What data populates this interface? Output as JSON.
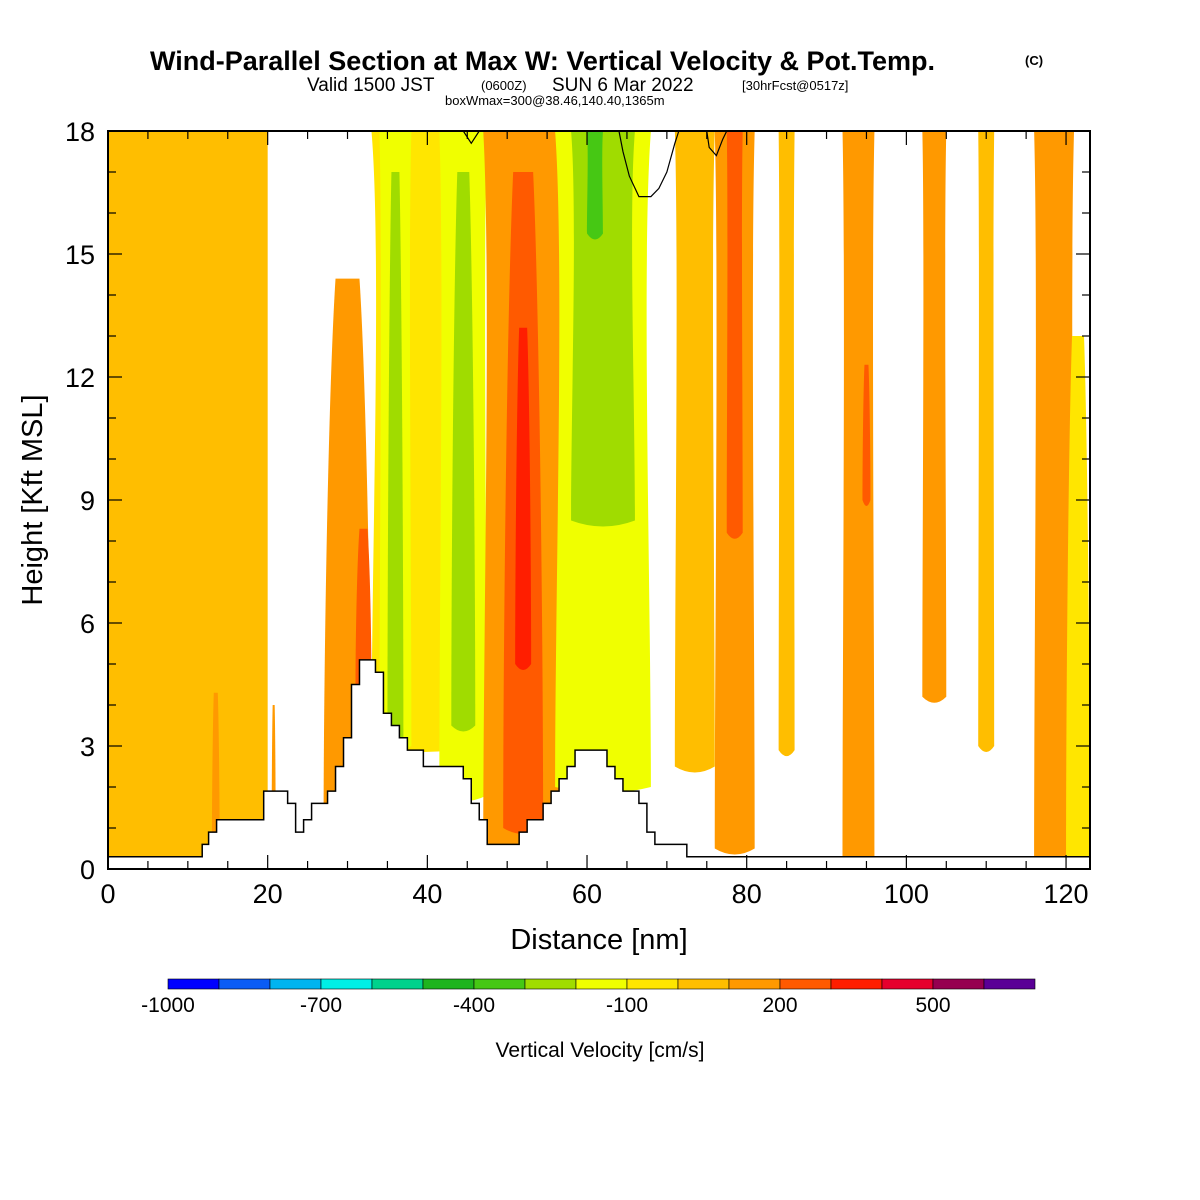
{
  "header": {
    "title": "Wind-Parallel Section at Max W: Vertical Velocity & Pot.Temp.",
    "copyright": "(C)",
    "valid_prefix": "Valid 1500 JST",
    "valid_utc": "(0600Z)",
    "valid_date": "SUN 6 Mar 2022",
    "forecast": "[30hrFcst@0517z]",
    "box_info": "boxWmax=300@38.46,140.40,1365m"
  },
  "chart_data": {
    "type": "heatmap",
    "title": "Wind-Parallel Section at Max W: Vertical Velocity & Pot.Temp.",
    "xlabel": "Distance [nm]",
    "ylabel": "Height [Kft MSL]",
    "xlim": [
      0,
      123
    ],
    "ylim": [
      0,
      18
    ],
    "x_ticks": [
      0,
      20,
      40,
      60,
      80,
      100,
      120
    ],
    "y_ticks": [
      0,
      3,
      6,
      9,
      12,
      15,
      18
    ],
    "colorbar": {
      "label": "Vertical Velocity [cm/s]",
      "levels": [
        -1000,
        -900,
        -800,
        -700,
        -600,
        -500,
        -400,
        -300,
        -200,
        -100,
        0,
        100,
        200,
        300,
        400,
        500,
        600,
        700
      ],
      "tick_labels": [
        {
          "value": -1000,
          "text": "-1000"
        },
        {
          "value": -700,
          "text": "-700"
        },
        {
          "value": -400,
          "text": "-400"
        },
        {
          "value": -100,
          "text": "-100"
        },
        {
          "value": 200,
          "text": "200"
        },
        {
          "value": 500,
          "text": "500"
        }
      ],
      "colors": [
        "#0000ff",
        "#0a5cf5",
        "#00b4f0",
        "#00f0e6",
        "#00d28c",
        "#1eb41e",
        "#46c814",
        "#a0dc00",
        "#f0ff00",
        "#ffe600",
        "#ffbe00",
        "#ff9900",
        "#ff5a00",
        "#ff1e00",
        "#e6002d",
        "#960050",
        "#5a0096"
      ]
    },
    "bins": {
      "-300_-200": "#a0dc00",
      "-200_-100": "#f0ff00",
      "-100_0": "#ffe600",
      "0_100": "#ffbe00",
      "100_200": "#ff9900",
      "200_300": "#ff5a00",
      "300_400": "#ff1e00",
      "-400_-300": "#46c814"
    },
    "velocity_columns": [
      {
        "x": [
          0,
          20
        ],
        "bin": "0_100",
        "z": [
          0,
          18
        ]
      },
      {
        "x": [
          13,
          14
        ],
        "bin": "100_200",
        "z": [
          0,
          4.3
        ]
      },
      {
        "x": [
          20.5,
          21
        ],
        "bin": "100_200",
        "z": [
          1,
          4
        ]
      },
      {
        "x": [
          27,
          33
        ],
        "bin": "100_200",
        "z": [
          0.9,
          14.4
        ]
      },
      {
        "x": [
          31,
          33
        ],
        "bin": "200_300",
        "z": [
          4.5,
          8.3
        ]
      },
      {
        "x": [
          33,
          46
        ],
        "bin": "-100_0",
        "z": [
          3,
          18
        ]
      },
      {
        "x": [
          34,
          38
        ],
        "bin": "-200_-100",
        "z": [
          3,
          18
        ]
      },
      {
        "x": [
          35,
          37
        ],
        "bin": "-300_-200",
        "z": [
          3,
          17
        ]
      },
      {
        "x": [
          41.5,
          47.5
        ],
        "bin": "-200_-100",
        "z": [
          1.8,
          18
        ]
      },
      {
        "x": [
          43,
          46
        ],
        "bin": "-300_-200",
        "z": [
          3.5,
          17
        ]
      },
      {
        "x": [
          47,
          57
        ],
        "bin": "100_200",
        "z": [
          0.6,
          18
        ]
      },
      {
        "x": [
          49.5,
          54.5
        ],
        "bin": "200_300",
        "z": [
          1,
          17
        ]
      },
      {
        "x": [
          51,
          53
        ],
        "bin": "300_400",
        "z": [
          5,
          13.2
        ]
      },
      {
        "x": [
          56,
          68
        ],
        "bin": "-200_-100",
        "z": [
          2,
          18
        ]
      },
      {
        "x": [
          58,
          66
        ],
        "bin": "-300_-200",
        "z": [
          8.5,
          18
        ]
      },
      {
        "x": [
          60,
          62
        ],
        "bin": "-400_-300",
        "z": [
          15.5,
          18
        ]
      },
      {
        "x": [
          71,
          76
        ],
        "bin": "0_100",
        "z": [
          2.5,
          18
        ]
      },
      {
        "x": [
          76,
          81
        ],
        "bin": "100_200",
        "z": [
          0.5,
          18
        ]
      },
      {
        "x": [
          77.5,
          79.5
        ],
        "bin": "200_300",
        "z": [
          8.2,
          18
        ]
      },
      {
        "x": [
          84,
          86
        ],
        "bin": "0_100",
        "z": [
          2.9,
          18
        ]
      },
      {
        "x": [
          92,
          96
        ],
        "bin": "100_200",
        "z": [
          0.3,
          18
        ]
      },
      {
        "x": [
          94.5,
          95.5
        ],
        "bin": "200_300",
        "z": [
          9,
          12.3
        ]
      },
      {
        "x": [
          102,
          105
        ],
        "bin": "100_200",
        "z": [
          4.2,
          18
        ]
      },
      {
        "x": [
          109,
          111
        ],
        "bin": "0_100",
        "z": [
          3,
          18
        ]
      },
      {
        "x": [
          116,
          121
        ],
        "bin": "100_200",
        "z": [
          0.3,
          18
        ]
      },
      {
        "x": [
          120,
          123
        ],
        "bin": "-100_0",
        "z": [
          0.3,
          13
        ]
      }
    ],
    "terrain": [
      [
        0,
        0.3
      ],
      [
        11.8,
        0.3
      ],
      [
        11.8,
        0.6
      ],
      [
        12.6,
        0.6
      ],
      [
        12.6,
        0.9
      ],
      [
        13.6,
        0.9
      ],
      [
        13.6,
        1.2
      ],
      [
        19.5,
        1.2
      ],
      [
        19.5,
        1.9
      ],
      [
        22.5,
        1.9
      ],
      [
        22.5,
        1.6
      ],
      [
        23.5,
        1.6
      ],
      [
        23.5,
        0.9
      ],
      [
        24.5,
        0.9
      ],
      [
        24.5,
        1.2
      ],
      [
        25.5,
        1.2
      ],
      [
        25.5,
        1.6
      ],
      [
        27.5,
        1.6
      ],
      [
        27.5,
        1.9
      ],
      [
        28.5,
        1.9
      ],
      [
        28.5,
        2.5
      ],
      [
        29.5,
        2.5
      ],
      [
        29.5,
        3.2
      ],
      [
        30.5,
        3.2
      ],
      [
        30.5,
        4.5
      ],
      [
        31.5,
        4.5
      ],
      [
        31.5,
        5.1
      ],
      [
        33.5,
        5.1
      ],
      [
        33.5,
        4.8
      ],
      [
        34.5,
        4.8
      ],
      [
        34.5,
        3.8
      ],
      [
        35.5,
        3.8
      ],
      [
        35.5,
        3.5
      ],
      [
        36.5,
        3.5
      ],
      [
        36.5,
        3.2
      ],
      [
        37.5,
        3.2
      ],
      [
        37.5,
        2.9
      ],
      [
        39.5,
        2.9
      ],
      [
        39.5,
        2.5
      ],
      [
        44.5,
        2.5
      ],
      [
        44.5,
        2.2
      ],
      [
        45.5,
        2.2
      ],
      [
        45.5,
        1.6
      ],
      [
        46.5,
        1.6
      ],
      [
        46.5,
        1.2
      ],
      [
        47.5,
        1.2
      ],
      [
        47.5,
        0.6
      ],
      [
        51.5,
        0.6
      ],
      [
        51.5,
        0.9
      ],
      [
        52.5,
        0.9
      ],
      [
        52.5,
        1.2
      ],
      [
        54.5,
        1.2
      ],
      [
        54.5,
        1.6
      ],
      [
        55.5,
        1.6
      ],
      [
        55.5,
        1.9
      ],
      [
        56.5,
        1.9
      ],
      [
        56.5,
        2.2
      ],
      [
        57.5,
        2.2
      ],
      [
        57.5,
        2.5
      ],
      [
        58.5,
        2.5
      ],
      [
        58.5,
        2.9
      ],
      [
        62.5,
        2.9
      ],
      [
        62.5,
        2.5
      ],
      [
        63.5,
        2.5
      ],
      [
        63.5,
        2.2
      ],
      [
        64.5,
        2.2
      ],
      [
        64.5,
        1.9
      ],
      [
        66.5,
        1.9
      ],
      [
        66.5,
        1.6
      ],
      [
        67.5,
        1.6
      ],
      [
        67.5,
        0.9
      ],
      [
        68.5,
        0.9
      ],
      [
        68.5,
        0.6
      ],
      [
        72.5,
        0.6
      ],
      [
        72.5,
        0.3
      ],
      [
        123,
        0.3
      ]
    ],
    "theta_contours": [
      [
        [
          44.5,
          18
        ],
        [
          45.5,
          17.7
        ],
        [
          46.5,
          18
        ]
      ],
      [
        [
          71.5,
          18
        ],
        [
          71,
          17.7
        ],
        [
          70,
          17
        ],
        [
          69,
          16.6
        ],
        [
          68,
          16.4
        ],
        [
          66.5,
          16.4
        ],
        [
          65.3,
          16.9
        ],
        [
          64.5,
          17.5
        ],
        [
          64,
          18
        ]
      ],
      [
        [
          75,
          18
        ],
        [
          75.3,
          17.6
        ],
        [
          76.2,
          17.4
        ],
        [
          77,
          17.8
        ],
        [
          77.5,
          18
        ]
      ]
    ]
  }
}
